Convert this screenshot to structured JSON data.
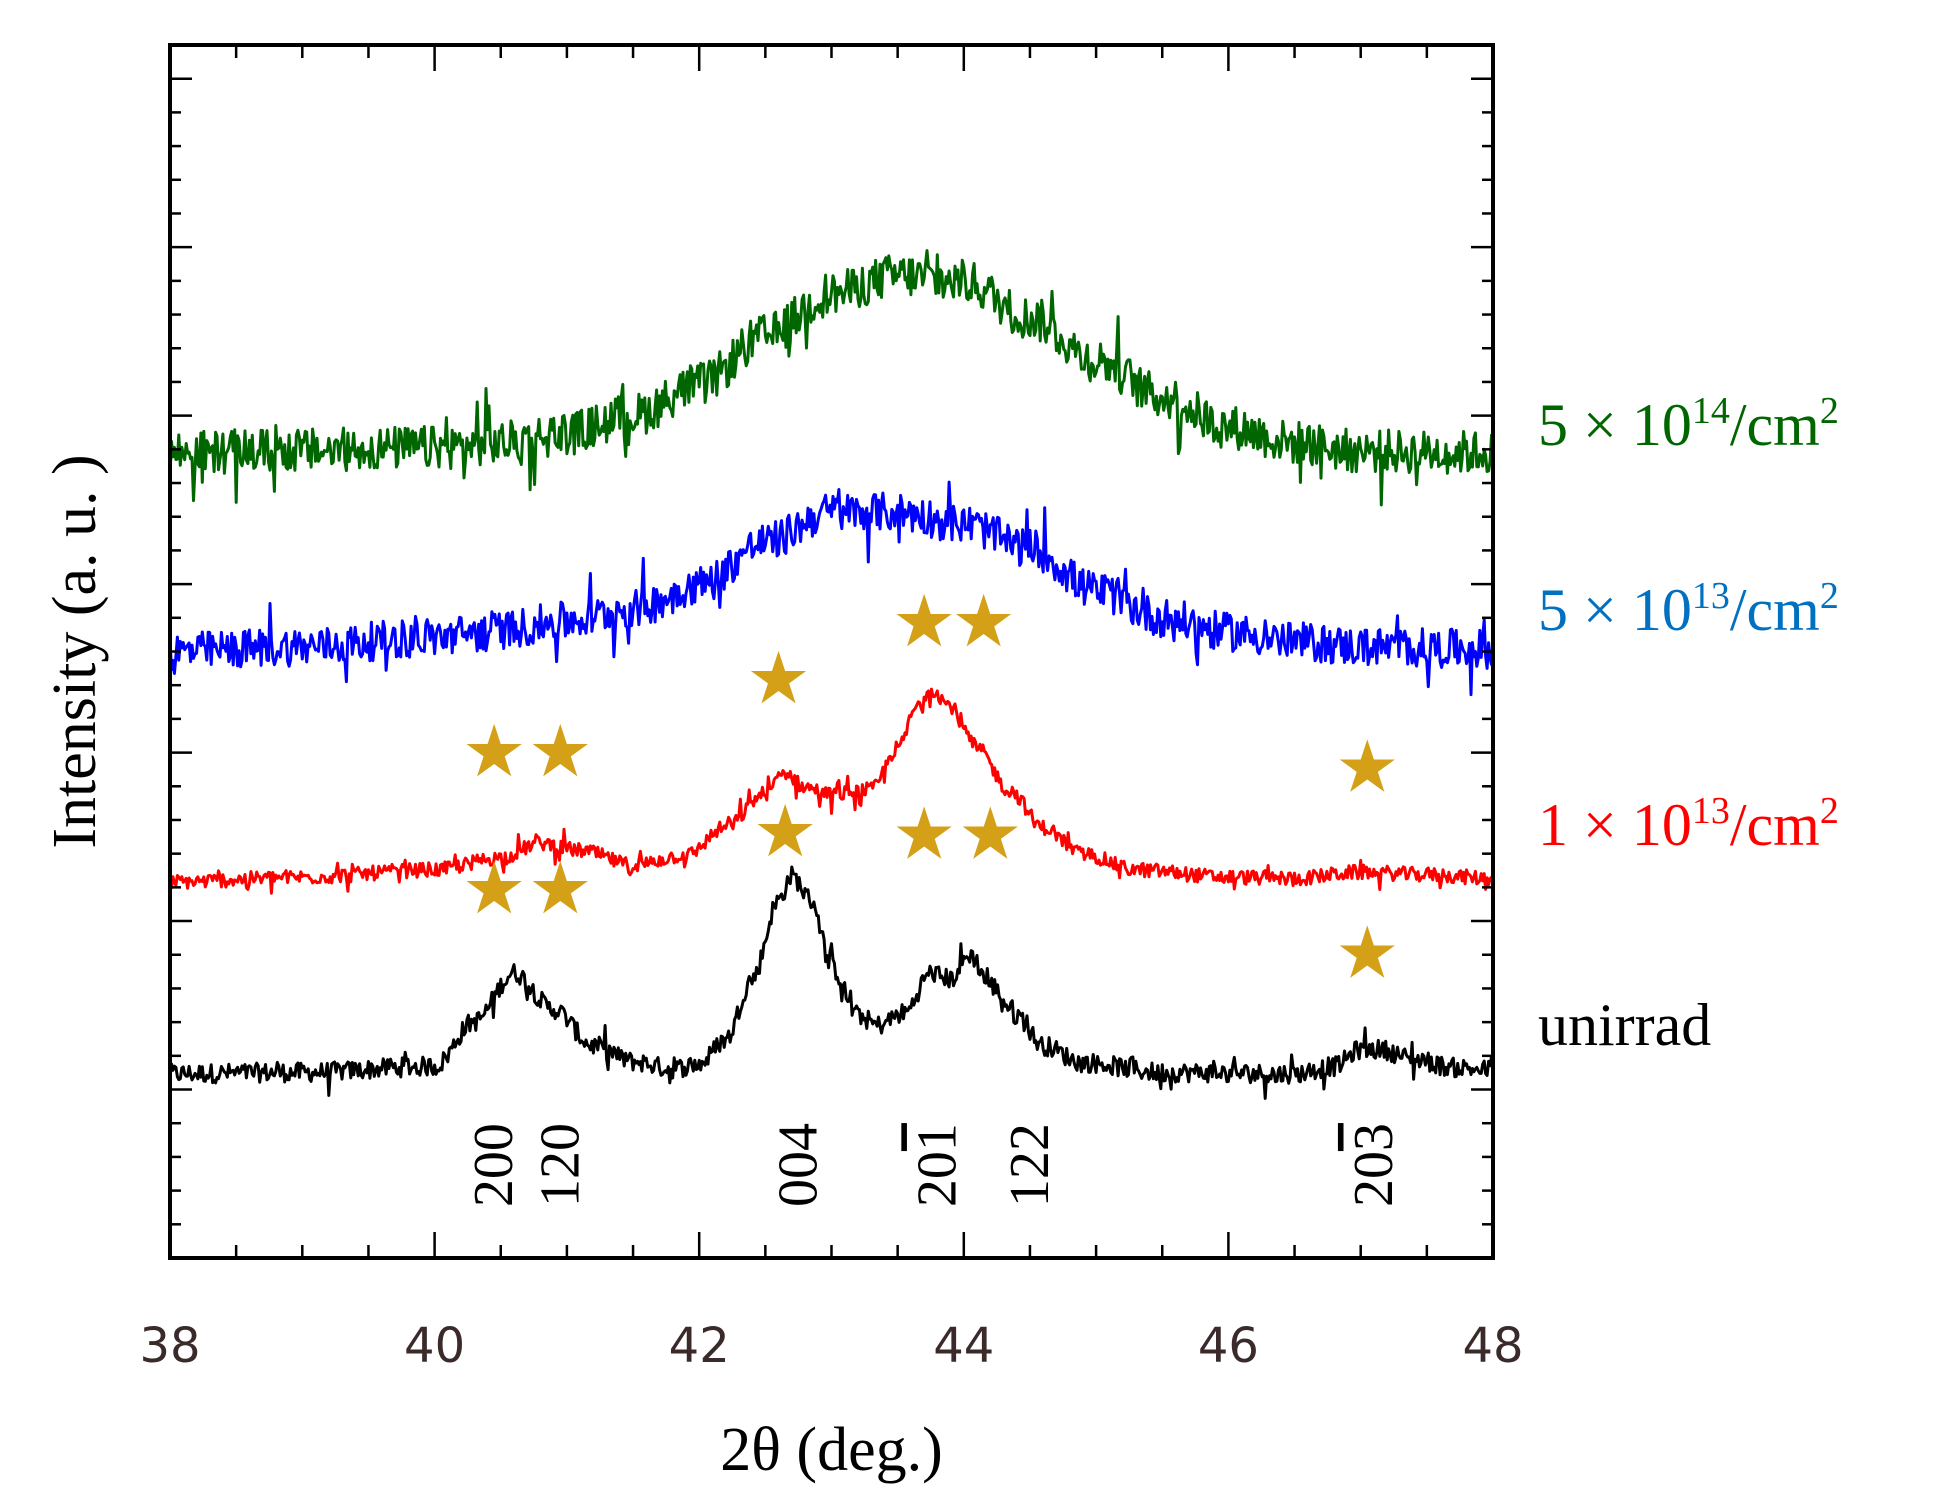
{
  "chart_data": {
    "type": "line",
    "title": "",
    "xlabel": "2θ (deg.)",
    "ylabel": "Intensity (a. u. )",
    "xlim": [
      38,
      48
    ],
    "x_ticks": [
      38,
      40,
      42,
      44,
      46,
      48
    ],
    "x_tick_labels": [
      "38",
      "40",
      "42",
      "44",
      "46",
      "48"
    ],
    "grid": false,
    "y_units": "arbitrary, stacked traces (0 = bottom of frame, 100 = top of frame)",
    "ylim": [
      0,
      100
    ],
    "series": [
      {
        "key": "unirrad",
        "name": "unirrad",
        "color": "#000000",
        "label_parts": [
          "unirrad"
        ],
        "noise": 0.8,
        "points": [
          [
            38,
            15.2
          ],
          [
            39,
            15.3
          ],
          [
            40,
            15.8
          ],
          [
            40.3,
            19.5
          ],
          [
            40.6,
            23.5
          ],
          [
            40.9,
            20.5
          ],
          [
            41.2,
            17.5
          ],
          [
            41.5,
            16.2
          ],
          [
            41.8,
            15.6
          ],
          [
            42,
            16
          ],
          [
            42.2,
            18
          ],
          [
            42.4,
            23
          ],
          [
            42.6,
            29.5
          ],
          [
            42.7,
            31.5
          ],
          [
            42.85,
            29.5
          ],
          [
            43,
            24
          ],
          [
            43.2,
            20
          ],
          [
            43.35,
            19.2
          ],
          [
            43.55,
            20.2
          ],
          [
            43.75,
            23.5
          ],
          [
            43.9,
            23
          ],
          [
            44.05,
            25
          ],
          [
            44.2,
            22.5
          ],
          [
            44.4,
            20
          ],
          [
            44.6,
            17.5
          ],
          [
            44.9,
            16.1
          ],
          [
            45.5,
            15.3
          ],
          [
            46.5,
            15.2
          ],
          [
            46.8,
            15.8
          ],
          [
            47,
            17.2
          ],
          [
            47.15,
            17.2
          ],
          [
            47.4,
            16.4
          ],
          [
            47.7,
            15.7
          ],
          [
            48,
            15.5
          ]
        ]
      },
      {
        "key": "d1e13",
        "name": "1 × 10^13/cm^2",
        "color": "#ff0000",
        "label_parts": [
          "1 × 10",
          "13",
          "/cm",
          "2"
        ],
        "noise": 0.6,
        "points": [
          [
            38,
            31
          ],
          [
            39,
            31.4
          ],
          [
            40,
            32
          ],
          [
            40.5,
            33
          ],
          [
            40.8,
            34.2
          ],
          [
            41.1,
            33.6
          ],
          [
            41.5,
            32.4
          ],
          [
            41.9,
            33.2
          ],
          [
            42.2,
            35.5
          ],
          [
            42.5,
            38.3
          ],
          [
            42.65,
            40
          ],
          [
            42.8,
            38.8
          ],
          [
            43,
            38.2
          ],
          [
            43.3,
            38.6
          ],
          [
            43.5,
            42
          ],
          [
            43.65,
            45.5
          ],
          [
            43.75,
            47
          ],
          [
            43.9,
            45.5
          ],
          [
            44.1,
            42
          ],
          [
            44.35,
            38.5
          ],
          [
            44.6,
            35.5
          ],
          [
            44.9,
            33.3
          ],
          [
            45.3,
            32
          ],
          [
            46,
            31.4
          ],
          [
            46.5,
            31.3
          ],
          [
            47,
            31.8
          ],
          [
            47.5,
            31.6
          ],
          [
            48,
            31.3
          ]
        ]
      },
      {
        "key": "d5e13",
        "name": "5 × 10^13/cm^2",
        "color": "#0000ff",
        "label_parts": [
          "5 × 10",
          "13",
          "/cm",
          "2"
        ],
        "noise": 1.6,
        "points": [
          [
            38,
            50
          ],
          [
            39,
            50.4
          ],
          [
            40,
            51.2
          ],
          [
            40.5,
            51.8
          ],
          [
            41,
            52.5
          ],
          [
            41.5,
            53.5
          ],
          [
            42,
            55.5
          ],
          [
            42.5,
            59
          ],
          [
            43,
            61.5
          ],
          [
            43.5,
            61.5
          ],
          [
            44,
            60.5
          ],
          [
            44.5,
            58.5
          ],
          [
            45,
            55
          ],
          [
            45.5,
            52.8
          ],
          [
            46,
            51.6
          ],
          [
            46.5,
            50.8
          ],
          [
            47,
            50.4
          ],
          [
            48,
            50.2
          ]
        ]
      },
      {
        "key": "d5e14",
        "name": "5 × 10^14/cm^2",
        "color": "#006600",
        "label_parts": [
          "5 × 10",
          "14",
          "/cm",
          "2"
        ],
        "noise": 1.8,
        "points": [
          [
            38,
            66.4
          ],
          [
            39,
            66.6
          ],
          [
            40,
            66.8
          ],
          [
            40.5,
            67.2
          ],
          [
            41,
            68
          ],
          [
            41.5,
            69.5
          ],
          [
            42,
            72
          ],
          [
            42.5,
            76
          ],
          [
            43,
            79.5
          ],
          [
            43.5,
            81
          ],
          [
            44,
            80.5
          ],
          [
            44.5,
            77.5
          ],
          [
            45,
            74
          ],
          [
            45.5,
            71
          ],
          [
            46,
            68.5
          ],
          [
            46.5,
            67.2
          ],
          [
            47,
            66.5
          ],
          [
            48,
            66.4
          ]
        ]
      }
    ],
    "star_markers": {
      "color": "#d4a017",
      "symbol": "★",
      "positions": [
        [
          40.45,
          30.5
        ],
        [
          40.95,
          30.5
        ],
        [
          42.65,
          35.2
        ],
        [
          43.7,
          35
        ],
        [
          44.2,
          35
        ],
        [
          47.05,
          25.2
        ],
        [
          40.45,
          41.8
        ],
        [
          40.95,
          41.8
        ],
        [
          42.6,
          47.8
        ],
        [
          43.7,
          52.5
        ],
        [
          44.15,
          52.5
        ],
        [
          47.05,
          40.5
        ]
      ]
    },
    "peak_labels": [
      {
        "x": 40.45,
        "text": "200",
        "overline": ""
      },
      {
        "x": 40.95,
        "text": "120",
        "overline": ""
      },
      {
        "x": 42.75,
        "text": "004",
        "overline": ""
      },
      {
        "x": 43.8,
        "text": "201",
        "overline": "1"
      },
      {
        "x": 44.5,
        "text": "122",
        "overline": ""
      },
      {
        "x": 47.1,
        "text": "203",
        "overline": "3"
      }
    ]
  }
}
